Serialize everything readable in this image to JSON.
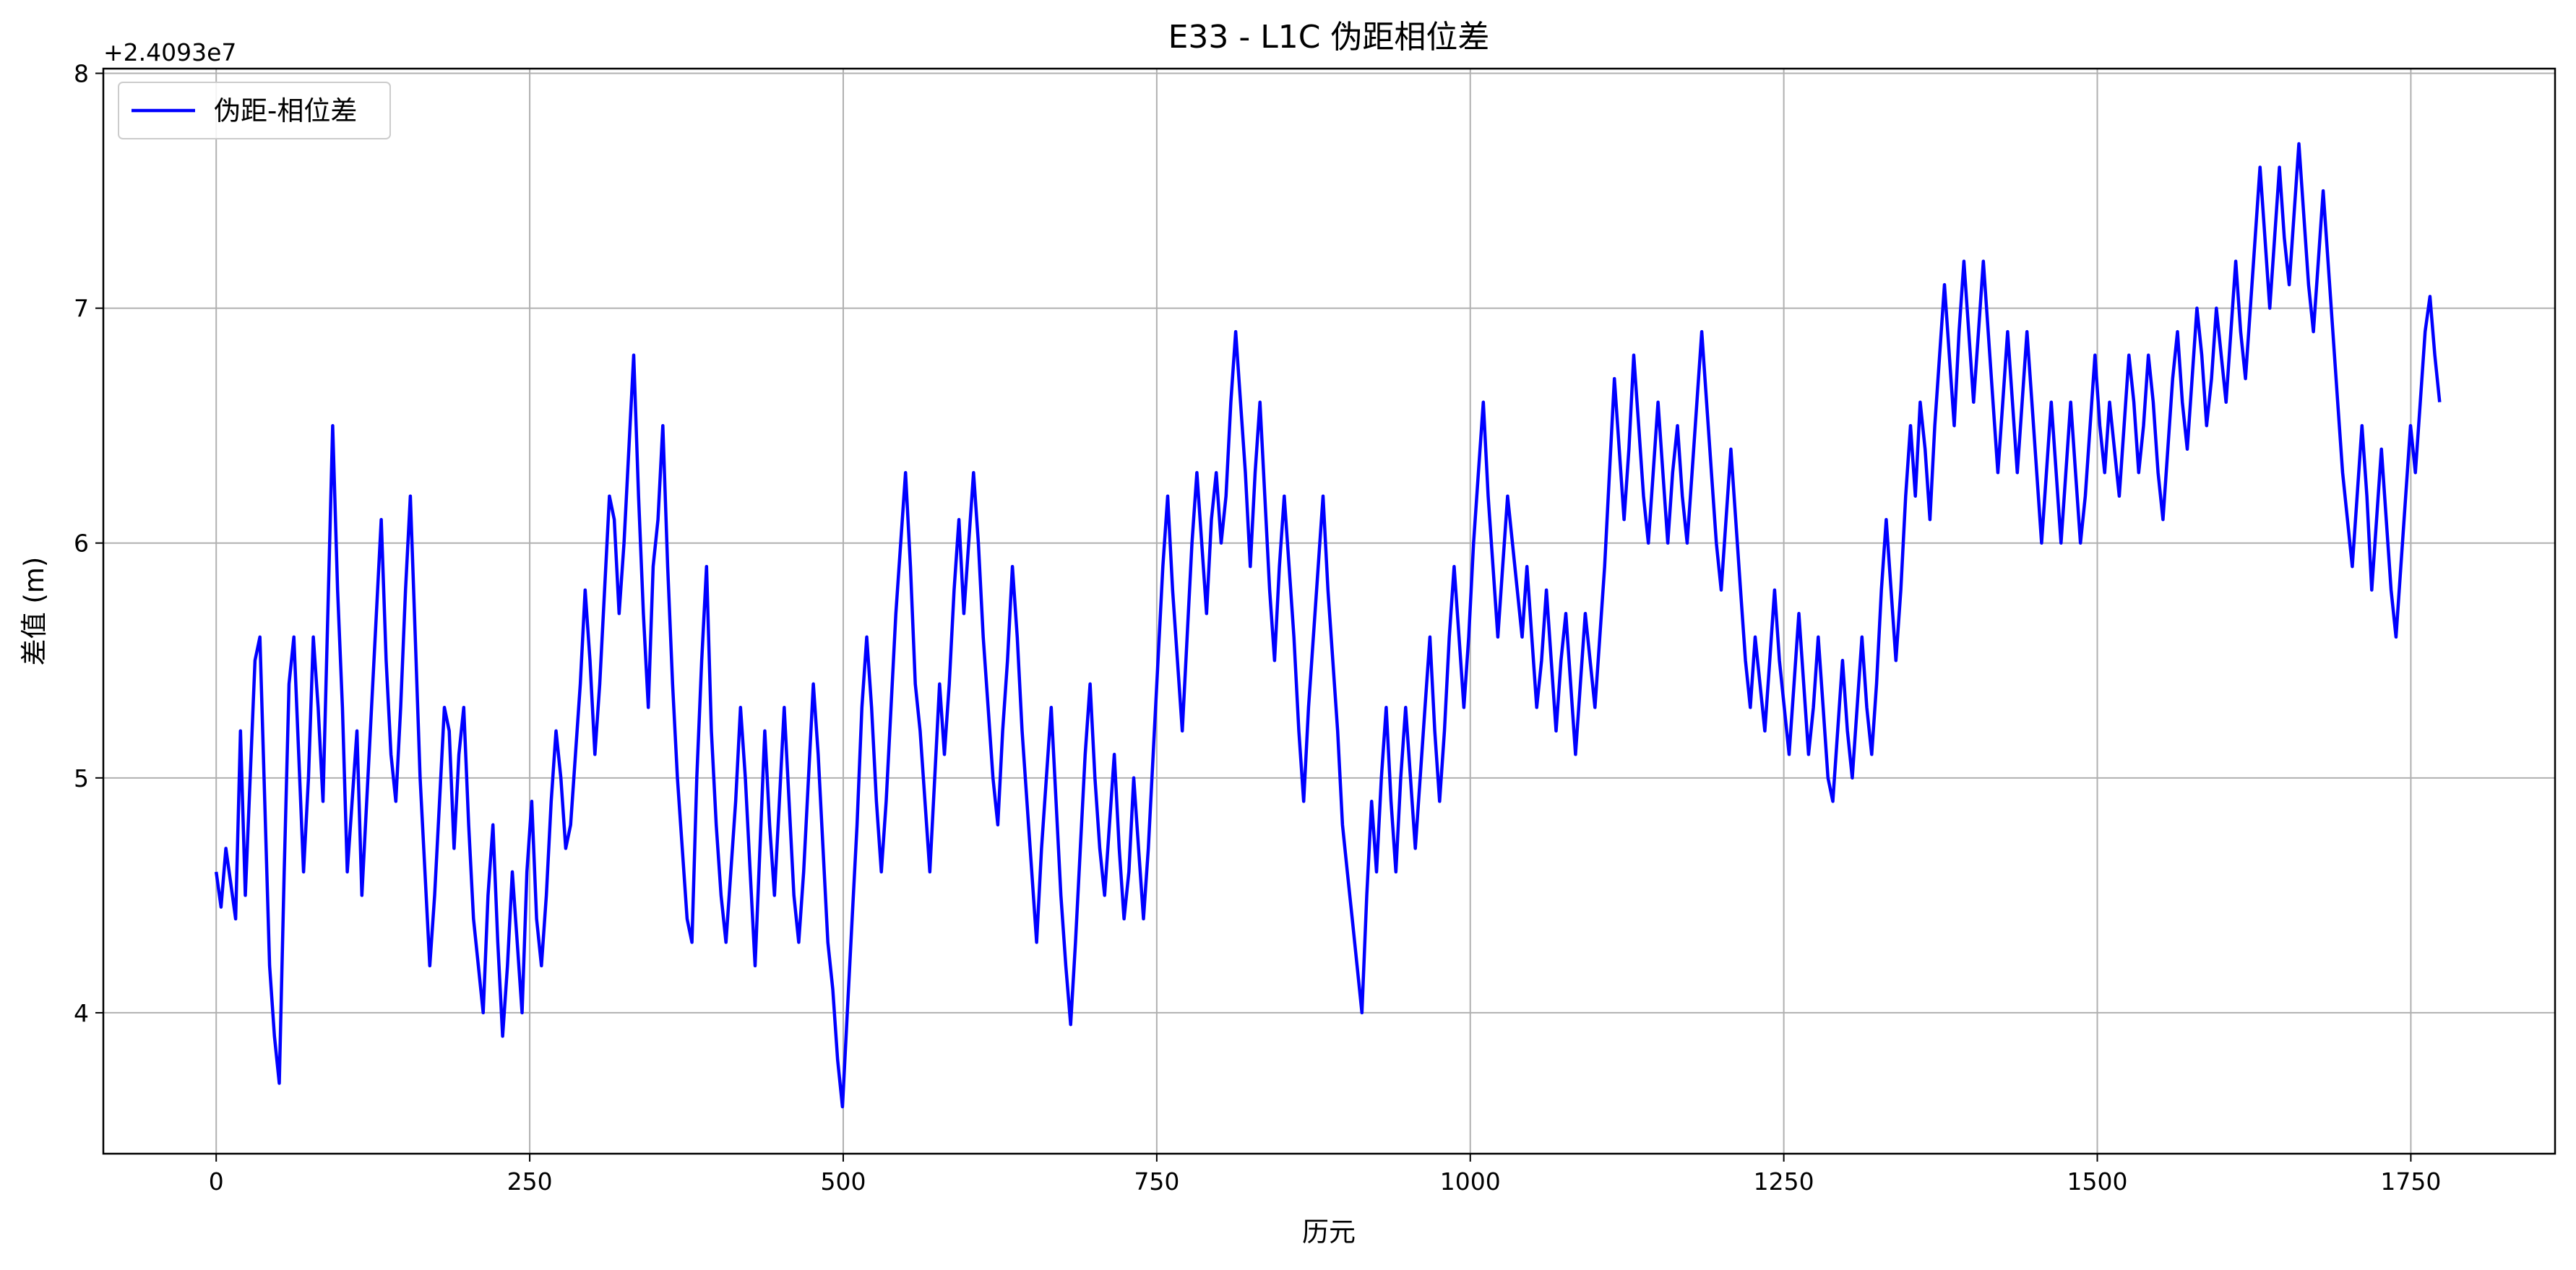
{
  "chart_data": {
    "type": "line",
    "title": "E33 - L1C 伪距相位差",
    "xlabel": "历元",
    "ylabel": "差值 (m)",
    "y_offset_label": "+2.4093e7",
    "xlim": [
      -90,
      1865
    ],
    "ylim": [
      3.4,
      8.02
    ],
    "x_ticks": [
      0,
      250,
      500,
      750,
      1000,
      1250,
      1500,
      1750
    ],
    "x_tick_labels": [
      "0",
      "250",
      "500",
      "750",
      "1000",
      "1250",
      "1500",
      "1750"
    ],
    "y_ticks": [
      4,
      5,
      6,
      7,
      8
    ],
    "y_tick_labels": [
      "4",
      "5",
      "6",
      "7",
      "8"
    ],
    "grid": true,
    "legend_position": "top-left",
    "series": [
      {
        "name": "伪距-相位差",
        "color": "#0000ff",
        "x_range": [
          0,
          1773
        ],
        "values": [
          4.6,
          4.45,
          4.7,
          4.55,
          4.4,
          5.2,
          4.5,
          5.0,
          5.5,
          5.6,
          4.9,
          4.2,
          3.9,
          3.7,
          4.6,
          5.4,
          5.6,
          5.1,
          4.6,
          5.0,
          5.6,
          5.3,
          4.9,
          5.7,
          6.5,
          5.8,
          5.3,
          4.6,
          4.9,
          5.2,
          4.5,
          4.9,
          5.3,
          5.7,
          6.1,
          5.5,
          5.1,
          4.9,
          5.3,
          5.8,
          6.2,
          5.6,
          5.0,
          4.6,
          4.2,
          4.5,
          4.9,
          5.3,
          5.2,
          4.7,
          5.1,
          5.3,
          4.8,
          4.4,
          4.2,
          4.0,
          4.5,
          4.8,
          4.3,
          3.9,
          4.2,
          4.6,
          4.3,
          4.0,
          4.6,
          4.9,
          4.4,
          4.2,
          4.5,
          4.9,
          5.2,
          5.0,
          4.7,
          4.8,
          5.1,
          5.4,
          5.8,
          5.5,
          5.1,
          5.4,
          5.8,
          6.2,
          6.1,
          5.7,
          6.0,
          6.4,
          6.8,
          6.2,
          5.7,
          5.3,
          5.9,
          6.1,
          6.5,
          5.9,
          5.4,
          5.0,
          4.7,
          4.4,
          4.3,
          5.0,
          5.5,
          5.9,
          5.2,
          4.8,
          4.5,
          4.3,
          4.6,
          4.9,
          5.3,
          5.0,
          4.6,
          4.2,
          4.7,
          5.2,
          4.8,
          4.5,
          4.9,
          5.3,
          4.9,
          4.5,
          4.3,
          4.6,
          5.0,
          5.4,
          5.1,
          4.7,
          4.3,
          4.1,
          3.8,
          3.6,
          4.0,
          4.4,
          4.8,
          5.3,
          5.6,
          5.3,
          4.9,
          4.6,
          4.9,
          5.3,
          5.7,
          6.0,
          6.3,
          5.9,
          5.4,
          5.2,
          4.9,
          4.6,
          5.0,
          5.4,
          5.1,
          5.4,
          5.8,
          6.1,
          5.7,
          6.0,
          6.3,
          6.0,
          5.6,
          5.3,
          5.0,
          4.8,
          5.2,
          5.5,
          5.9,
          5.6,
          5.2,
          4.9,
          4.6,
          4.3,
          4.7,
          5.0,
          5.3,
          4.9,
          4.5,
          4.2,
          3.95,
          4.3,
          4.7,
          5.1,
          5.4,
          5.0,
          4.7,
          4.5,
          4.8,
          5.1,
          4.7,
          4.4,
          4.6,
          5.0,
          4.7,
          4.4,
          4.7,
          5.1,
          5.5,
          5.9,
          6.2,
          5.8,
          5.5,
          5.2,
          5.6,
          6.0,
          6.3,
          6.0,
          5.7,
          6.1,
          6.3,
          6.0,
          6.2,
          6.6,
          6.9,
          6.6,
          6.3,
          5.9,
          6.3,
          6.6,
          6.2,
          5.8,
          5.5,
          5.9,
          6.2,
          5.9,
          5.6,
          5.2,
          4.9,
          5.3,
          5.6,
          5.9,
          6.2,
          5.8,
          5.5,
          5.2,
          4.8,
          4.6,
          4.4,
          4.2,
          4.0,
          4.5,
          4.9,
          4.6,
          5.0,
          5.3,
          4.9,
          4.6,
          5.0,
          5.3,
          5.0,
          4.7,
          5.0,
          5.3,
          5.6,
          5.2,
          4.9,
          5.2,
          5.6,
          5.9,
          5.6,
          5.3,
          5.6,
          6.0,
          6.3,
          6.6,
          6.2,
          5.9,
          5.6,
          5.9,
          6.2,
          6.0,
          5.8,
          5.6,
          5.9,
          5.6,
          5.3,
          5.5,
          5.8,
          5.5,
          5.2,
          5.5,
          5.7,
          5.4,
          5.1,
          5.4,
          5.7,
          5.5,
          5.3,
          5.6,
          5.9,
          6.3,
          6.7,
          6.4,
          6.1,
          6.4,
          6.8,
          6.5,
          6.2,
          6.0,
          6.3,
          6.6,
          6.3,
          6.0,
          6.3,
          6.5,
          6.2,
          6.0,
          6.3,
          6.6,
          6.9,
          6.6,
          6.3,
          6.0,
          5.8,
          6.1,
          6.4,
          6.1,
          5.8,
          5.5,
          5.3,
          5.6,
          5.4,
          5.2,
          5.5,
          5.8,
          5.5,
          5.3,
          5.1,
          5.4,
          5.7,
          5.4,
          5.1,
          5.3,
          5.6,
          5.3,
          5.0,
          4.9,
          5.2,
          5.5,
          5.2,
          5.0,
          5.3,
          5.6,
          5.3,
          5.1,
          5.4,
          5.8,
          6.1,
          5.8,
          5.5,
          5.8,
          6.2,
          6.5,
          6.2,
          6.6,
          6.4,
          6.1,
          6.5,
          6.8,
          7.1,
          6.8,
          6.5,
          6.9,
          7.2,
          6.9,
          6.6,
          6.9,
          7.2,
          6.9,
          6.6,
          6.3,
          6.6,
          6.9,
          6.6,
          6.3,
          6.6,
          6.9,
          6.6,
          6.3,
          6.0,
          6.3,
          6.6,
          6.3,
          6.0,
          6.3,
          6.6,
          6.3,
          6.0,
          6.2,
          6.5,
          6.8,
          6.5,
          6.3,
          6.6,
          6.4,
          6.2,
          6.5,
          6.8,
          6.6,
          6.3,
          6.5,
          6.8,
          6.6,
          6.3,
          6.1,
          6.4,
          6.7,
          6.9,
          6.6,
          6.4,
          6.7,
          7.0,
          6.8,
          6.5,
          6.7,
          7.0,
          6.8,
          6.6,
          6.9,
          7.2,
          6.9,
          6.7,
          7.0,
          7.3,
          7.6,
          7.3,
          7.0,
          7.3,
          7.6,
          7.3,
          7.1,
          7.4,
          7.7,
          7.4,
          7.1,
          6.9,
          7.2,
          7.5,
          7.2,
          6.9,
          6.6,
          6.3,
          6.1,
          5.9,
          6.2,
          6.5,
          6.2,
          5.8,
          6.1,
          6.4,
          6.1,
          5.8,
          5.6,
          5.9,
          6.2,
          6.5,
          6.3,
          6.6,
          6.9,
          7.05,
          6.8,
          6.6
        ]
      }
    ]
  }
}
